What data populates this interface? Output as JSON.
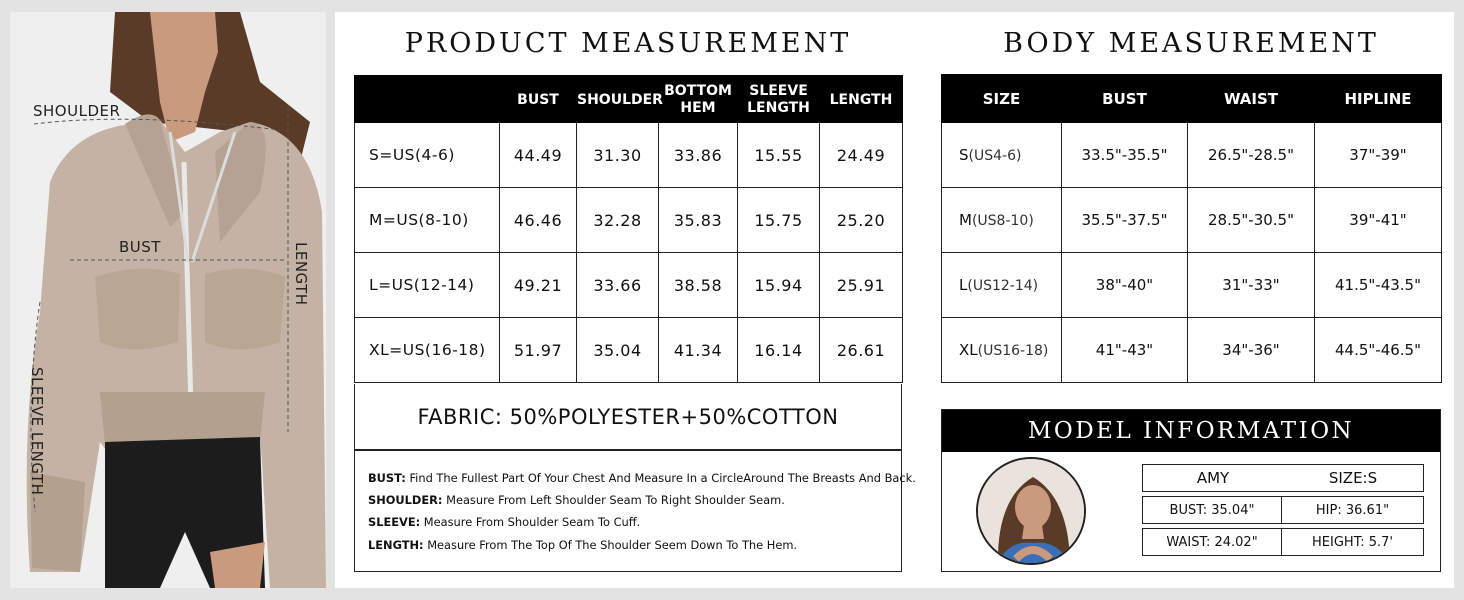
{
  "photo": {
    "labels": {
      "shoulder": "SHOULDER",
      "bust": "BUST",
      "length": "LENGTH",
      "sleeve_length": "SLEEVE LENGTH"
    },
    "colors": {
      "hoodie": "#c4b3a4",
      "shorts": "#1c1c1c",
      "skin": "#c99a7d",
      "hair": "#5a3b27"
    }
  },
  "product": {
    "title": "PRODUCT MEASUREMENT",
    "headers": [
      "",
      "BUST",
      "SHOULDER",
      "BOTTOM HEM",
      "SLEEVE LENGTH",
      "LENGTH"
    ],
    "rows": [
      {
        "size": "S=US(4-6)",
        "values": [
          "44.49",
          "31.30",
          "33.86",
          "15.55",
          "24.49"
        ]
      },
      {
        "size": "M=US(8-10)",
        "values": [
          "46.46",
          "32.28",
          "35.83",
          "15.75",
          "25.20"
        ]
      },
      {
        "size": "L=US(12-14)",
        "values": [
          "49.21",
          "33.66",
          "38.58",
          "15.94",
          "25.91"
        ]
      },
      {
        "size": "XL=US(16-18)",
        "values": [
          "51.97",
          "35.04",
          "41.34",
          "16.14",
          "26.61"
        ]
      }
    ],
    "fabric": "FABRIC:  50%POLYESTER+50%COTTON",
    "notes": [
      {
        "key": "BUST:",
        "text": " Find The Fullest Part Of Your Chest And Measure In a CircleAround The Breasts And Back."
      },
      {
        "key": "SHOULDER:",
        "text": " Measure From Left Shoulder Seam To Right Shoulder Seam."
      },
      {
        "key": "SLEEVE:",
        "text": " Measure From Shoulder Seam To Cuff."
      },
      {
        "key": "LENGTH:",
        "text": " Measure From The Top Of The Shoulder Seem Down To The Hem."
      }
    ]
  },
  "body": {
    "title": "BODY MEASUREMENT",
    "headers": [
      "SIZE",
      "BUST",
      "WAIST",
      "HIPLINE"
    ],
    "rows": [
      {
        "size": "S",
        "size_sub": "(US4-6)",
        "values": [
          "33.5\"-35.5\"",
          "26.5\"-28.5\"",
          "37\"-39\""
        ]
      },
      {
        "size": "M",
        "size_sub": "(US8-10)",
        "values": [
          "35.5\"-37.5\"",
          "28.5\"-30.5\"",
          "39\"-41\""
        ]
      },
      {
        "size": "L",
        "size_sub": "(US12-14)",
        "values": [
          "38\"-40\"",
          "31\"-33\"",
          "41.5\"-43.5\""
        ]
      },
      {
        "size": "XL",
        "size_sub": "(US16-18)",
        "values": [
          "41\"-43\"",
          "34\"-36\"",
          "44.5\"-46.5\""
        ]
      }
    ]
  },
  "model": {
    "title": "MODEL INFORMATION",
    "name": "AMY",
    "size": "SIZE:S",
    "bust": "BUST: 35.04\"",
    "hip": "HIP: 36.61\"",
    "waist": "WAIST: 24.02\"",
    "height": "HEIGHT: 5.7'"
  }
}
